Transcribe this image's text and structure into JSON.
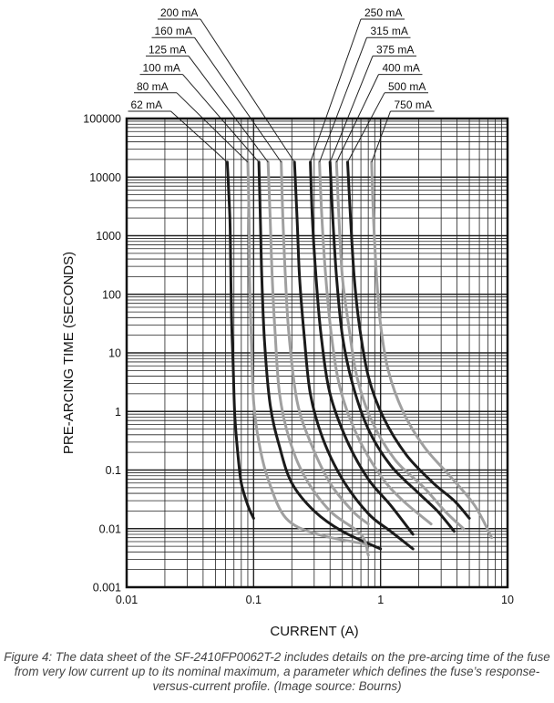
{
  "chart_data": {
    "type": "line",
    "title": "",
    "xlabel": "CURRENT (A)",
    "ylabel": "PRE-ARCING TIME (SECONDS)",
    "x_scale": "log",
    "y_scale": "log",
    "xlim": [
      0.01,
      10
    ],
    "ylim": [
      0.001,
      100000
    ],
    "grid": true,
    "x_tick_labels": [
      "0.01",
      "0.1",
      "1",
      "10"
    ],
    "y_tick_labels": [
      "0.001",
      "0.01",
      "0.1",
      "1",
      "10",
      "100",
      "1000",
      "10000",
      "100000"
    ],
    "legend_placement": "top, leader lines to curves",
    "colors": {
      "dark_series": "#1a1a1a",
      "light_series": "#a0a0a0",
      "grid": "#222222"
    },
    "series": [
      {
        "name": "62 mA",
        "color": "dark",
        "points": [
          [
            0.062,
            18000
          ],
          [
            0.065,
            2000
          ],
          [
            0.066,
            300
          ],
          [
            0.067,
            40
          ],
          [
            0.069,
            6
          ],
          [
            0.071,
            0.9
          ],
          [
            0.075,
            0.2
          ],
          [
            0.08,
            0.06
          ],
          [
            0.09,
            0.025
          ],
          [
            0.1,
            0.015
          ]
        ]
      },
      {
        "name": "80 mA",
        "color": "light",
        "points": [
          [
            0.09,
            18000
          ],
          [
            0.092,
            2000
          ],
          [
            0.093,
            200
          ],
          [
            0.096,
            15
          ],
          [
            0.1,
            1.5
          ],
          [
            0.11,
            0.3
          ],
          [
            0.13,
            0.07
          ],
          [
            0.18,
            0.015
          ],
          [
            0.32,
            0.008
          ],
          [
            0.75,
            0.0055
          ]
        ]
      },
      {
        "name": "100 mA",
        "color": "dark",
        "points": [
          [
            0.11,
            18000
          ],
          [
            0.113,
            2000
          ],
          [
            0.116,
            200
          ],
          [
            0.122,
            15
          ],
          [
            0.135,
            1.3
          ],
          [
            0.16,
            0.25
          ],
          [
            0.2,
            0.06
          ],
          [
            0.3,
            0.02
          ],
          [
            0.5,
            0.009
          ],
          [
            1.0,
            0.0045
          ]
        ]
      },
      {
        "name": "125 mA",
        "color": "light",
        "points": [
          [
            0.13,
            18000
          ],
          [
            0.135,
            2000
          ],
          [
            0.14,
            200
          ],
          [
            0.148,
            20
          ],
          [
            0.16,
            2
          ],
          [
            0.19,
            0.35
          ],
          [
            0.25,
            0.08
          ],
          [
            0.4,
            0.02
          ],
          [
            0.7,
            0.008
          ],
          [
            0.8,
            0.0035
          ]
        ]
      },
      {
        "name": "160 mA",
        "color": "light",
        "points": [
          [
            0.165,
            18000
          ],
          [
            0.17,
            2000
          ],
          [
            0.178,
            200
          ],
          [
            0.19,
            20
          ],
          [
            0.22,
            1.5
          ],
          [
            0.28,
            0.3
          ],
          [
            0.4,
            0.06
          ],
          [
            0.6,
            0.02
          ],
          [
            0.8,
            0.012
          ]
        ]
      },
      {
        "name": "200 mA",
        "color": "dark",
        "points": [
          [
            0.21,
            18000
          ],
          [
            0.22,
            2000
          ],
          [
            0.23,
            200
          ],
          [
            0.25,
            20
          ],
          [
            0.28,
            2
          ],
          [
            0.35,
            0.35
          ],
          [
            0.5,
            0.07
          ],
          [
            0.8,
            0.018
          ],
          [
            1.2,
            0.009
          ],
          [
            1.8,
            0.0045
          ]
        ]
      },
      {
        "name": "250 mA",
        "color": "dark",
        "points": [
          [
            0.28,
            18000
          ],
          [
            0.29,
            2000
          ],
          [
            0.31,
            200
          ],
          [
            0.34,
            20
          ],
          [
            0.4,
            2
          ],
          [
            0.55,
            0.3
          ],
          [
            0.8,
            0.07
          ],
          [
            1.2,
            0.025
          ],
          [
            1.8,
            0.008
          ]
        ]
      },
      {
        "name": "315 mA",
        "color": "light",
        "points": [
          [
            0.33,
            18000
          ],
          [
            0.345,
            2000
          ],
          [
            0.37,
            200
          ],
          [
            0.41,
            20
          ],
          [
            0.48,
            2.5
          ],
          [
            0.65,
            0.4
          ],
          [
            1.0,
            0.08
          ],
          [
            1.5,
            0.03
          ],
          [
            2.5,
            0.012
          ]
        ]
      },
      {
        "name": "375 mA",
        "color": "dark",
        "points": [
          [
            0.4,
            18000
          ],
          [
            0.42,
            2000
          ],
          [
            0.45,
            200
          ],
          [
            0.5,
            20
          ],
          [
            0.6,
            3
          ],
          [
            0.8,
            0.5
          ],
          [
            1.2,
            0.12
          ],
          [
            2.0,
            0.04
          ],
          [
            2.8,
            0.02
          ],
          [
            3.8,
            0.009
          ]
        ]
      },
      {
        "name": "400 mA",
        "color": "light",
        "points": [
          [
            0.45,
            18000
          ],
          [
            0.47,
            2000
          ],
          [
            0.5,
            200
          ],
          [
            0.56,
            30
          ],
          [
            0.65,
            4
          ],
          [
            0.85,
            0.7
          ],
          [
            1.3,
            0.15
          ],
          [
            2.2,
            0.05
          ],
          [
            3.2,
            0.02
          ],
          [
            4.5,
            0.01
          ]
        ]
      },
      {
        "name": "500 mA",
        "color": "dark",
        "points": [
          [
            0.55,
            18000
          ],
          [
            0.58,
            2000
          ],
          [
            0.62,
            200
          ],
          [
            0.68,
            30
          ],
          [
            0.8,
            4
          ],
          [
            1.05,
            0.8
          ],
          [
            1.6,
            0.18
          ],
          [
            2.6,
            0.06
          ],
          [
            3.8,
            0.03
          ],
          [
            5.0,
            0.015
          ]
        ]
      },
      {
        "name": "750 mA",
        "color": "light",
        "points": [
          [
            0.85,
            18000
          ],
          [
            0.88,
            2000
          ],
          [
            0.93,
            200
          ],
          [
            1.0,
            30
          ],
          [
            1.15,
            5
          ],
          [
            1.5,
            1.0
          ],
          [
            2.2,
            0.25
          ],
          [
            3.5,
            0.08
          ],
          [
            5.5,
            0.025
          ],
          [
            7.5,
            0.007
          ]
        ]
      }
    ]
  },
  "caption": "Figure 4: The data sheet of the SF-2410FP0062T-2 includes details on the pre-arcing time of the fuse from very low current up to its nominal maximum, a parameter which defines the fuse’s response-versus-current profile. (Image source: Bourns)"
}
